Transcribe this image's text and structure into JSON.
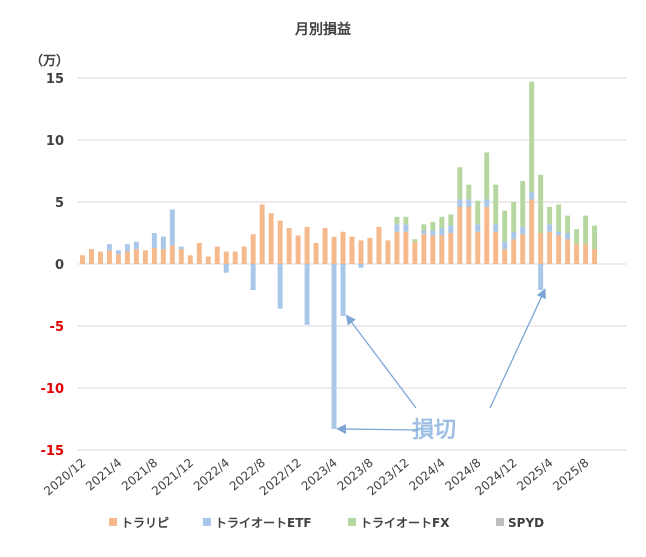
{
  "chart_data": {
    "type": "bar",
    "stacked": true,
    "title": "月別損益",
    "unit_label": "（万）",
    "ylim": [
      -15,
      15
    ],
    "yticks": [
      15,
      10,
      5,
      0,
      -5,
      -10,
      -15
    ],
    "negative_tick_color": "#e00000",
    "grid": true,
    "legend_position": "bottom",
    "categories": [
      "2020/12",
      "2021/1",
      "2021/2",
      "2021/3",
      "2021/4",
      "2021/5",
      "2021/6",
      "2021/7",
      "2021/8",
      "2021/9",
      "2021/10",
      "2021/11",
      "2021/12",
      "2022/1",
      "2022/2",
      "2022/3",
      "2022/4",
      "2022/5",
      "2022/6",
      "2022/7",
      "2022/8",
      "2022/9",
      "2022/10",
      "2022/11",
      "2022/12",
      "2023/1",
      "2023/2",
      "2023/3",
      "2023/4",
      "2023/5",
      "2023/6",
      "2023/7",
      "2023/8",
      "2023/9",
      "2023/10",
      "2023/11",
      "2023/12",
      "2024/1",
      "2024/2",
      "2024/3",
      "2024/4",
      "2024/5",
      "2024/6",
      "2024/7",
      "2024/8",
      "2024/9",
      "2024/10",
      "2024/11",
      "2024/12",
      "2025/1",
      "2025/2",
      "2025/3",
      "2025/4",
      "2025/5",
      "2025/6",
      "2025/7",
      "2025/8",
      "2025/9",
      "2025/10",
      "2025/11",
      "2025/12"
    ],
    "tick_labels": [
      "2020/12",
      "2021/4",
      "2021/8",
      "2021/12",
      "2022/4",
      "2022/8",
      "2022/12",
      "2023/4",
      "2023/8",
      "2023/12",
      "2024/4",
      "2024/8",
      "2024/12",
      "2025/4",
      "2025/8"
    ],
    "series": [
      {
        "name": "トラリピ",
        "color": "#f5b98c",
        "values": [
          0.7,
          1.2,
          1.0,
          1.1,
          0.8,
          1.0,
          1.2,
          1.1,
          1.3,
          1.2,
          1.5,
          1.2,
          0.7,
          1.7,
          0.6,
          1.4,
          1.0,
          1.0,
          1.4,
          2.4,
          4.8,
          4.1,
          3.5,
          2.9,
          2.3,
          3.0,
          1.7,
          2.9,
          2.2,
          2.6,
          2.2,
          1.9,
          2.1,
          3.0,
          1.9,
          2.6,
          2.6,
          1.8,
          2.4,
          2.3,
          2.3,
          2.5,
          4.6,
          4.6,
          2.6,
          4.6,
          2.6,
          1.2,
          2.0,
          2.4,
          5.2,
          2.5,
          2.6,
          2.3,
          2.0,
          1.6,
          1.6,
          1.2,
          0,
          0,
          0
        ]
      },
      {
        "name": "トライオートETF",
        "color": "#a9c7e8",
        "values": [
          0,
          0,
          0,
          0.5,
          0.3,
          0.6,
          0.6,
          0,
          1.2,
          1.0,
          2.9,
          0.2,
          0,
          0,
          0,
          0,
          -0.7,
          0,
          0,
          -2.1,
          0,
          0,
          -3.6,
          0,
          0,
          -4.9,
          0,
          0,
          -13.3,
          -4.2,
          0,
          -0.3,
          0,
          0,
          0,
          0.6,
          0.6,
          0,
          0.3,
          0.4,
          0.6,
          0.6,
          0.6,
          0.6,
          0.6,
          0.6,
          0.6,
          0.6,
          0.6,
          0.6,
          0.6,
          -2.1,
          0.6,
          0.3,
          0.5,
          0,
          0,
          0,
          0,
          0,
          0
        ]
      },
      {
        "name": "トライオートFX",
        "color": "#b6d7a0",
        "values": [
          0,
          0,
          0,
          0,
          0,
          0,
          0,
          0,
          0,
          0,
          0,
          0,
          0,
          0,
          0,
          0,
          0,
          0,
          0,
          0,
          0,
          0,
          0,
          0,
          0,
          0,
          0,
          0,
          0,
          0,
          0,
          0,
          0,
          0,
          0,
          0.6,
          0.6,
          0.2,
          0.5,
          0.7,
          0.9,
          0.9,
          2.6,
          1.2,
          1.9,
          3.8,
          3.2,
          2.5,
          2.4,
          3.7,
          8.9,
          4.7,
          1.4,
          2.2,
          1.4,
          1.2,
          2.3,
          1.9,
          0,
          0,
          0
        ]
      },
      {
        "name": "SPYD",
        "color": "#bfbfbf",
        "values": [
          0,
          0,
          0,
          0,
          0,
          0,
          0,
          0,
          0,
          0,
          0,
          0,
          0,
          0,
          0,
          0,
          0,
          0,
          0,
          0,
          0,
          0,
          0,
          0,
          0,
          0,
          0,
          0,
          0,
          0,
          0,
          0,
          0,
          0,
          0,
          0,
          0,
          0,
          0,
          0,
          0,
          0,
          0,
          0,
          0,
          0,
          0,
          0,
          0,
          0,
          0,
          0,
          0,
          0,
          0,
          0,
          0,
          0,
          0,
          0,
          0
        ]
      }
    ],
    "annotation": {
      "text": "損切",
      "color": "#9dbfe3",
      "targets": [
        "2023/4",
        "2023/5",
        "2025/3"
      ]
    }
  }
}
